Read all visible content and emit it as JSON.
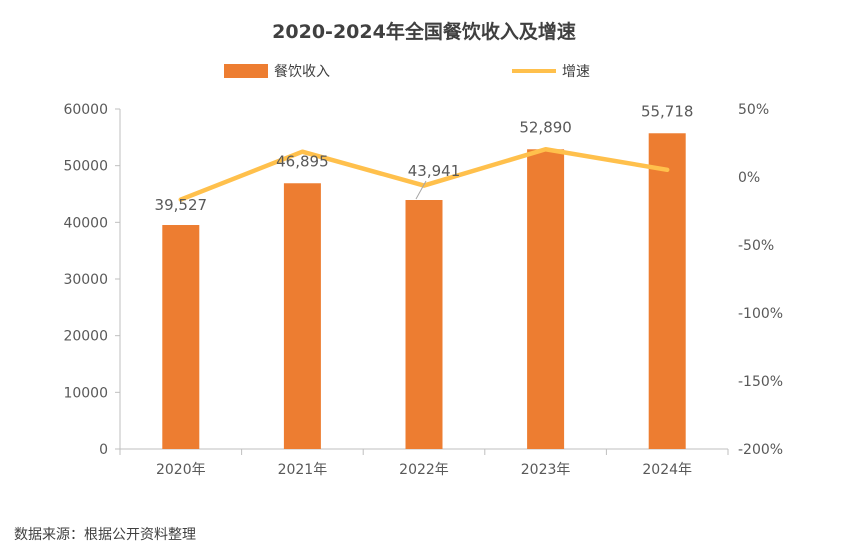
{
  "chart_data": {
    "type": "bar",
    "title": "2020-2024年全国餐饮收入及增速",
    "categories": [
      "2020年",
      "2021年",
      "2022年",
      "2023年",
      "2024年"
    ],
    "series": [
      {
        "name": "餐饮收入",
        "type": "bar",
        "axis": "left",
        "values": [
          39527,
          46895,
          43941,
          52890,
          55718
        ],
        "labels": [
          "39,527",
          "46,895",
          "43,941",
          "52,890",
          "55,718"
        ],
        "color": "#ED7D31"
      },
      {
        "name": "增速",
        "type": "line",
        "axis": "right",
        "values": [
          -16.6,
          18.6,
          -6.3,
          20.4,
          5.3
        ],
        "color": "#FFC04C"
      }
    ],
    "y_left": {
      "lim": [
        0,
        60000
      ],
      "ticks": [
        0,
        10000,
        20000,
        30000,
        40000,
        50000,
        60000
      ],
      "tick_labels": [
        "0",
        "10000",
        "20000",
        "30000",
        "40000",
        "50000",
        "60000"
      ]
    },
    "y_right": {
      "lim": [
        -200,
        50
      ],
      "ticks": [
        -200,
        -150,
        -100,
        -50,
        0,
        50
      ],
      "tick_labels": [
        "-200%",
        "-150%",
        "-100%",
        "-50%",
        "0%",
        "50%"
      ]
    },
    "legend_position": "top",
    "grid": false
  },
  "source_note": "数据来源：根据公开资料整理"
}
